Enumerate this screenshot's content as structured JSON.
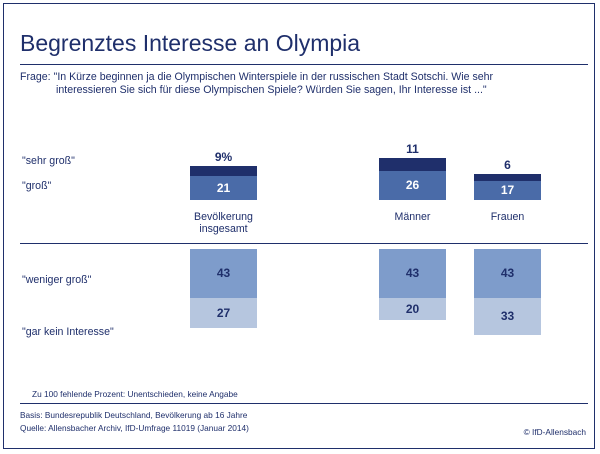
{
  "header": {
    "title": "Begrenztes Interesse an Olympia",
    "question_line1": "Frage: \"In Kürze beginnen ja die Olympischen Winterspiele in der russischen Stadt Sotschi. Wie sehr",
    "question_line2": "interessieren Sie sich für diese Olympischen Spiele? Würden Sie sagen, Ihr Interesse ist ...\""
  },
  "labels": {
    "sehr_gross": "\"sehr groß\"",
    "gross": "\"groß\"",
    "weniger_gross": "\"weniger groß\"",
    "gar_kein": "\"gar kein Interesse\""
  },
  "footer": {
    "note": "Zu 100 fehlende Prozent: Unentschieden, keine Angabe",
    "basis": "Basis: Bundesrepublik Deutschland, Bevölkerung ab 16 Jahre",
    "quelle": "Quelle: Allensbacher Archiv, IfD-Umfrage 11019 (Januar 2014)",
    "credit": "© IfD-Allensbach"
  },
  "colors": {
    "sehr_gross": "#1f2f6b",
    "gross": "#4a6ba8",
    "weniger_gross": "#7e9ccb",
    "gar_kein": "#b6c6df",
    "text": "#1f2f6b"
  },
  "chart_data": {
    "type": "bar",
    "categories": [
      "Bevölkerung insgesamt",
      "Männer",
      "Frauen"
    ],
    "category_lines": [
      [
        "Bevölkerung",
        "insgesamt"
      ],
      [
        "Männer"
      ],
      [
        "Frauen"
      ]
    ],
    "series": [
      {
        "name": "\"sehr groß\"",
        "values": [
          9,
          11,
          6
        ],
        "labels": [
          "9%",
          "11",
          "6"
        ]
      },
      {
        "name": "\"groß\"",
        "values": [
          21,
          26,
          17
        ],
        "labels": [
          "21",
          "26",
          "17"
        ]
      },
      {
        "name": "\"weniger groß\"",
        "values": [
          43,
          43,
          43
        ],
        "labels": [
          "43",
          "43",
          "43"
        ]
      },
      {
        "name": "\"gar kein Interesse\"",
        "values": [
          27,
          20,
          33
        ],
        "labels": [
          "27",
          "20",
          "33"
        ]
      }
    ],
    "unit": "%"
  }
}
